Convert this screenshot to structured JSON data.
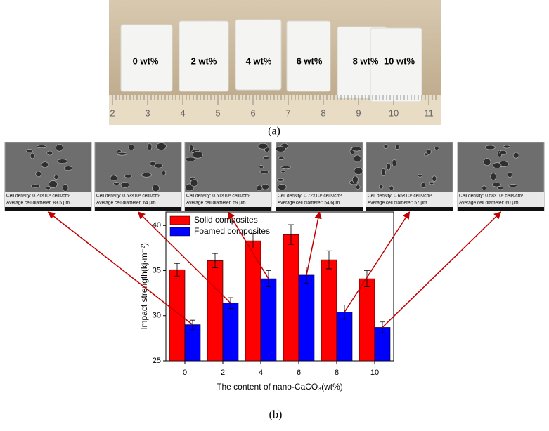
{
  "photo": {
    "labels": [
      "0 wt%",
      "2 wt%",
      "4 wt%",
      "6 wt%",
      "8 wt%",
      "10 wt%"
    ],
    "ruler_labels": [
      "2",
      "3",
      "4",
      "5",
      "6",
      "7",
      "8",
      "9",
      "10",
      "11"
    ]
  },
  "panel_a": "(a)",
  "panel_b": "(b)",
  "sem": [
    {
      "density": "Cell density: 0.21×10⁸ cells/cm³",
      "diameter": "Average cell diameter: 83.5 µm"
    },
    {
      "density": "Cell density: 0.53×10⁸ cells/cm³",
      "diameter": "Average cell diameter: 64 µm"
    },
    {
      "density": "Cell density: 0.61×10⁸ cells/cm³",
      "diameter": "Average cell diameter: 59 µm"
    },
    {
      "density": "Cell density: 0.72×10⁸ cells/cm³",
      "diameter": "Average cell diameter: 54.6µm"
    },
    {
      "density": "Cell density: 0.65×10⁸ cells/cm³",
      "diameter": "Average cell diameter: 57 µm"
    },
    {
      "density": "Cell density: 0.58×10⁸ cells/cm³",
      "diameter": "Average cell diameter: 60 µm"
    }
  ],
  "chart_data": {
    "type": "bar",
    "x_label": "The content of nano-CaCO₃(wt%)",
    "y_label": "Impact strength(kj·m⁻²)",
    "categories": [
      "0",
      "2",
      "4",
      "6",
      "8",
      "10"
    ],
    "series": [
      {
        "name": "Solid composites",
        "color": "#ff0000",
        "values": [
          35.1,
          36.1,
          38.3,
          39.0,
          36.2,
          34.1
        ],
        "errors": [
          0.7,
          0.8,
          0.8,
          1.1,
          1.0,
          0.9
        ]
      },
      {
        "name": "Foamed composites",
        "color": "#0000ff",
        "values": [
          29.0,
          31.4,
          34.1,
          34.5,
          30.4,
          28.7
        ],
        "errors": [
          0.5,
          0.6,
          0.9,
          0.9,
          0.8,
          0.6
        ]
      }
    ],
    "ylim": [
      25,
      41.5
    ],
    "yticks": [
      25,
      30,
      35,
      40
    ],
    "legend": "upper-left"
  }
}
